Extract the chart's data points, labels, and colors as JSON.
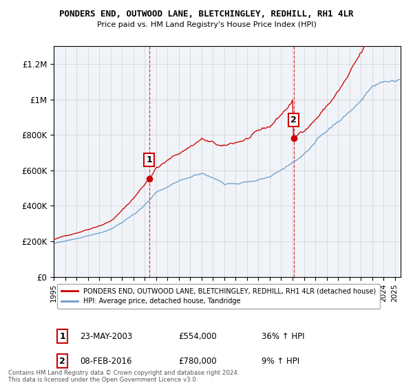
{
  "title": "PONDERS END, OUTWOOD LANE, BLETCHINGLEY, REDHILL, RH1 4LR",
  "subtitle": "Price paid vs. HM Land Registry's House Price Index (HPI)",
  "ylabel_ticks": [
    "£0",
    "£200K",
    "£400K",
    "£600K",
    "£800K",
    "£1M",
    "£1.2M"
  ],
  "ytick_values": [
    0,
    200000,
    400000,
    600000,
    800000,
    1000000,
    1200000
  ],
  "ylim": [
    0,
    1300000
  ],
  "xlim_start": 1995.0,
  "xlim_end": 2025.5,
  "sale1_x": 2003.39,
  "sale1_y": 554000,
  "sale2_x": 2016.1,
  "sale2_y": 780000,
  "line_color_red": "#cc0000",
  "line_color_blue": "#6699cc",
  "background_color": "#f0f4f8",
  "legend_entry1": "PONDERS END, OUTWOOD LANE, BLETCHINGLEY, REDHILL, RH1 4LR (detached house)",
  "legend_entry2": "HPI: Average price, detached house, Tandridge",
  "annotation1_date": "23-MAY-2003",
  "annotation1_price": "£554,000",
  "annotation1_hpi": "36% ↑ HPI",
  "annotation2_date": "08-FEB-2016",
  "annotation2_price": "£780,000",
  "annotation2_hpi": "9% ↑ HPI",
  "footer": "Contains HM Land Registry data © Crown copyright and database right 2024.\nThis data is licensed under the Open Government Licence v3.0."
}
